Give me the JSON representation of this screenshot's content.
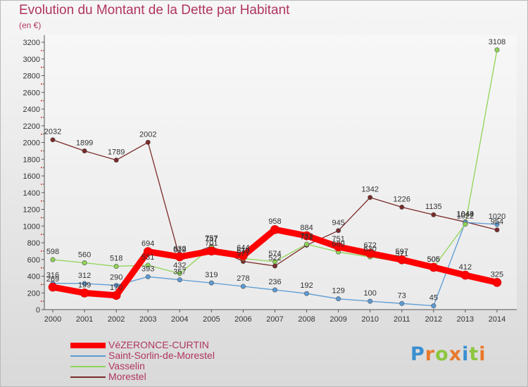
{
  "header": {
    "title": "Evolution du Montant de la Dette par Habitant",
    "subtitle": "(en €)"
  },
  "logo": {
    "text": "Proxiti",
    "letter_colors": [
      "#3a8fd0",
      "#e8792d",
      "#8cc63f",
      "#e8792d",
      "#3a8fd0",
      "#8cc63f",
      "#e8792d"
    ]
  },
  "chart_data": {
    "type": "line",
    "title": "Evolution du Montant de la Dette par Habitant",
    "ylabel": "(en €)",
    "xlabel": "",
    "x": [
      "2000",
      "2001",
      "2002",
      "2003",
      "2004",
      "2005",
      "2006",
      "2007",
      "2008",
      "2009",
      "2010",
      "2011",
      "2012",
      "2013",
      "2014"
    ],
    "ylim": [
      0,
      3200
    ],
    "yticks": [
      0,
      200,
      400,
      600,
      800,
      1000,
      1200,
      1400,
      1600,
      1800,
      2000,
      2200,
      2400,
      2600,
      2800,
      3000,
      3200
    ],
    "grid": false,
    "legend": "bottom-left",
    "series": [
      {
        "name": "VéZERONCE-CURTIN",
        "color": "#ff0000",
        "values": [
          269,
          199,
          170,
          694,
          632,
          701,
          644,
          958,
          884,
          751,
          672,
          597,
          506,
          412,
          325
        ]
      },
      {
        "name": "Saint-Sorlin-de-Morestel",
        "color": "#5b9bd5",
        "values": [
          316,
          312,
          290,
          393,
          357,
          319,
          278,
          236,
          192,
          129,
          100,
          73,
          45,
          1044,
          1020
        ]
      },
      {
        "name": "Vasselin",
        "color": "#8fd456",
        "values": [
          598,
          560,
          518,
          531,
          432,
          747,
          610,
          574,
          783,
          689,
          630,
          571,
          505,
          1022,
          3108
        ]
      },
      {
        "name": "Morestel",
        "color": "#7a2a2a",
        "values": [
          2032,
          1899,
          1789,
          2002,
          619,
          757,
          577,
          522,
          771,
          945,
          1342,
          1226,
          1135,
          1049,
          954
        ]
      }
    ]
  }
}
